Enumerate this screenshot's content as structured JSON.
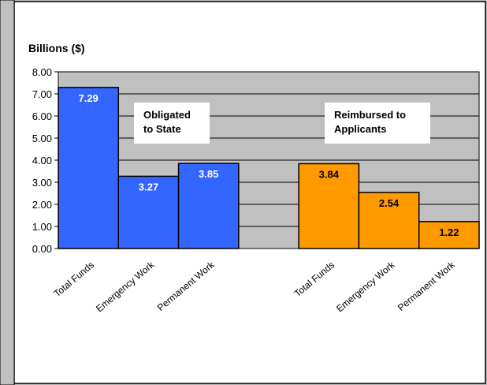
{
  "chart_data": {
    "type": "bar",
    "ylabel": "Billions ($)",
    "ylim": [
      0,
      8
    ],
    "yticks": [
      "0.00",
      "1.00",
      "2.00",
      "3.00",
      "4.00",
      "5.00",
      "6.00",
      "7.00",
      "8.00"
    ],
    "grid": true,
    "groups": [
      {
        "label": "Obligated\nto State",
        "color": "#3366ff",
        "bars": [
          {
            "category": "Total Funds",
            "value": 7.29,
            "label": "7.29"
          },
          {
            "category": "Emergency  Work",
            "value": 3.27,
            "label": "3.27"
          },
          {
            "category": "Permanent  Work",
            "value": 3.85,
            "label": "3.85"
          }
        ]
      },
      {
        "label": "Reimbursed to\nApplicants",
        "color": "#ff9900",
        "bars": [
          {
            "category": "Total Funds",
            "value": 3.84,
            "label": "3.84"
          },
          {
            "category": "Emergency  Work",
            "value": 2.54,
            "label": "2.54"
          },
          {
            "category": "Permanent  Work",
            "value": 1.22,
            "label": "1.22"
          }
        ]
      }
    ]
  }
}
